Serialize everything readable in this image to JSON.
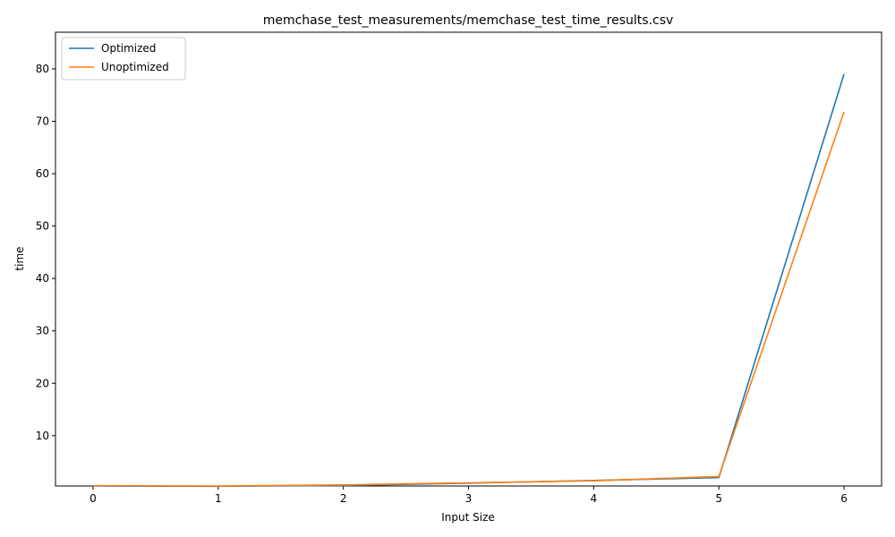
{
  "chart_data": {
    "type": "line",
    "title": "memchase_test_measurements/memchase_test_time_results.csv",
    "xlabel": "Input Size",
    "ylabel": "time",
    "x": [
      0,
      1,
      2,
      3,
      4,
      5,
      6
    ],
    "xlim": [
      -0.3,
      6.3
    ],
    "ylim": [
      0.4,
      87
    ],
    "xticks": [
      0,
      1,
      2,
      3,
      4,
      5,
      6
    ],
    "yticks": [
      10,
      20,
      30,
      40,
      50,
      60,
      70,
      80
    ],
    "grid": false,
    "legend_position": "top-left",
    "series": [
      {
        "name": "Optimized",
        "color": "#1f77b4",
        "values": [
          0.4,
          0.35,
          0.5,
          0.95,
          1.45,
          2.0,
          79.0
        ]
      },
      {
        "name": "Unoptimized",
        "color": "#ff7f0e",
        "values": [
          0.45,
          0.4,
          0.6,
          1.0,
          1.4,
          2.2,
          71.8
        ]
      }
    ]
  }
}
